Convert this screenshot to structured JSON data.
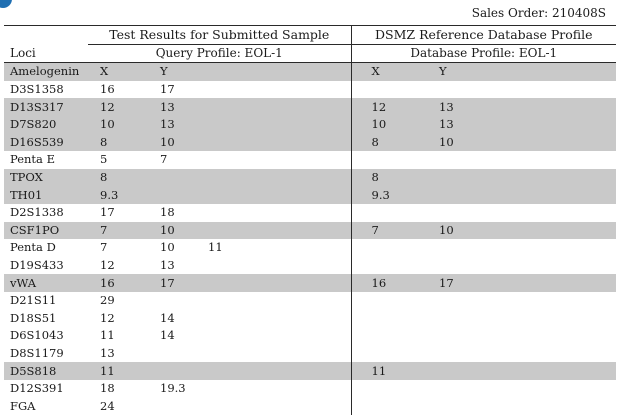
{
  "sales_order": "Sales Order: 210408S",
  "headers": {
    "query_section": "Test Results for Submitted Sample",
    "reference_section": "DSMZ Reference Database Profile",
    "loci_label": "Loci",
    "query_profile": "Query Profile: EOL-1",
    "database_profile": "Database Profile: EOL-1"
  },
  "rows": [
    {
      "locus": "Amelogenin",
      "q": [
        "X",
        "Y",
        ""
      ],
      "r": [
        "X",
        "Y"
      ],
      "shaded": true
    },
    {
      "locus": "D3S1358",
      "q": [
        "16",
        "17",
        ""
      ],
      "r": [
        "",
        ""
      ],
      "shaded": false
    },
    {
      "locus": "D13S317",
      "q": [
        "12",
        "13",
        ""
      ],
      "r": [
        "12",
        "13"
      ],
      "shaded": true
    },
    {
      "locus": "D7S820",
      "q": [
        "10",
        "13",
        ""
      ],
      "r": [
        "10",
        "13"
      ],
      "shaded": true
    },
    {
      "locus": "D16S539",
      "q": [
        "8",
        "10",
        ""
      ],
      "r": [
        "8",
        "10"
      ],
      "shaded": true
    },
    {
      "locus": "Penta E",
      "q": [
        "5",
        "7",
        ""
      ],
      "r": [
        "",
        ""
      ],
      "shaded": false
    },
    {
      "locus": "TPOX",
      "q": [
        "8",
        "",
        ""
      ],
      "r": [
        "8",
        ""
      ],
      "shaded": true
    },
    {
      "locus": "TH01",
      "q": [
        "9.3",
        "",
        ""
      ],
      "r": [
        "9.3",
        ""
      ],
      "shaded": true
    },
    {
      "locus": "D2S1338",
      "q": [
        "17",
        "18",
        ""
      ],
      "r": [
        "",
        ""
      ],
      "shaded": false
    },
    {
      "locus": "CSF1PO",
      "q": [
        "7",
        "10",
        ""
      ],
      "r": [
        "7",
        "10"
      ],
      "shaded": true
    },
    {
      "locus": "Penta D",
      "q": [
        "7",
        "10",
        "11"
      ],
      "r": [
        "",
        ""
      ],
      "shaded": false
    },
    {
      "locus": "D19S433",
      "q": [
        "12",
        "13",
        ""
      ],
      "r": [
        "",
        ""
      ],
      "shaded": false
    },
    {
      "locus": "vWA",
      "q": [
        "16",
        "17",
        ""
      ],
      "r": [
        "16",
        "17"
      ],
      "shaded": true
    },
    {
      "locus": "D21S11",
      "q": [
        "29",
        "",
        ""
      ],
      "r": [
        "",
        ""
      ],
      "shaded": false
    },
    {
      "locus": "D18S51",
      "q": [
        "12",
        "14",
        ""
      ],
      "r": [
        "",
        ""
      ],
      "shaded": false
    },
    {
      "locus": "D6S1043",
      "q": [
        "11",
        "14",
        ""
      ],
      "r": [
        "",
        ""
      ],
      "shaded": false
    },
    {
      "locus": "D8S1179",
      "q": [
        "13",
        "",
        ""
      ],
      "r": [
        "",
        ""
      ],
      "shaded": false
    },
    {
      "locus": "D5S818",
      "q": [
        "11",
        "",
        ""
      ],
      "r": [
        "11",
        ""
      ],
      "shaded": true
    },
    {
      "locus": "D12S391",
      "q": [
        "18",
        "19.3",
        ""
      ],
      "r": [
        "",
        ""
      ],
      "shaded": false
    },
    {
      "locus": "FGA",
      "q": [
        "24",
        "",
        ""
      ],
      "r": [
        "",
        ""
      ],
      "shaded": false
    }
  ]
}
